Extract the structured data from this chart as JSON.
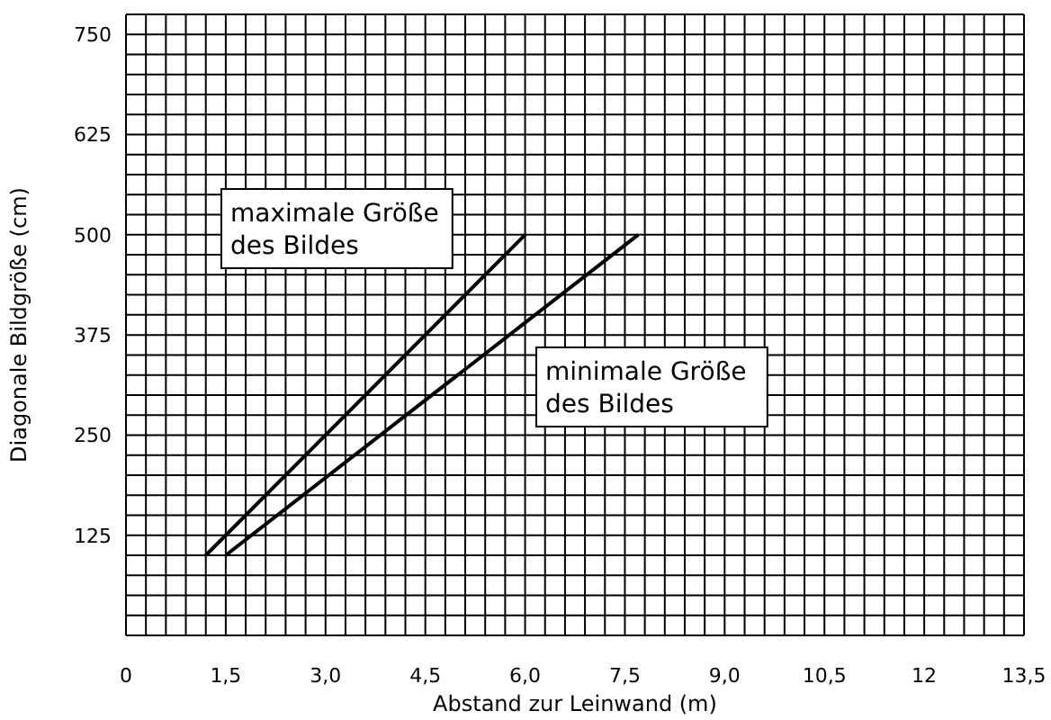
{
  "chart_data": {
    "type": "line",
    "xlabel": "Abstand zur Leinwand (m)",
    "ylabel": "Diagonale Bildgröße (cm)",
    "series": [
      {
        "x": [
          1.2,
          6.0
        ],
        "values": [
          100,
          500
        ],
        "color": "#000000"
      },
      {
        "x": [
          1.5,
          7.7
        ],
        "values": [
          100,
          500
        ],
        "color": "#000000"
      }
    ],
    "xlim": [
      0,
      13.5
    ],
    "xticks": [
      0,
      {
        "value": 1.5,
        "label": "1,5"
      },
      {
        "value": 3,
        "label": "3,0"
      },
      {
        "value": 4.5,
        "label": "4,5"
      },
      {
        "value": 6,
        "label": "6,0"
      },
      {
        "value": 7.5,
        "label": "7,5"
      },
      {
        "value": 9,
        "label": "9,0"
      },
      {
        "value": 10.5,
        "label": "10,5"
      },
      12,
      {
        "value": 13.5,
        "label": "13,5"
      }
    ],
    "ylim": [
      0,
      775
    ],
    "yticks": [
      125,
      250,
      375,
      500,
      625,
      750
    ],
    "annotations": [
      "maximale Größe\ndes Bildes",
      "minimale Größe\ndes Bildes"
    ],
    "grid": true,
    "marker": "none",
    "line_style": "solid"
  }
}
